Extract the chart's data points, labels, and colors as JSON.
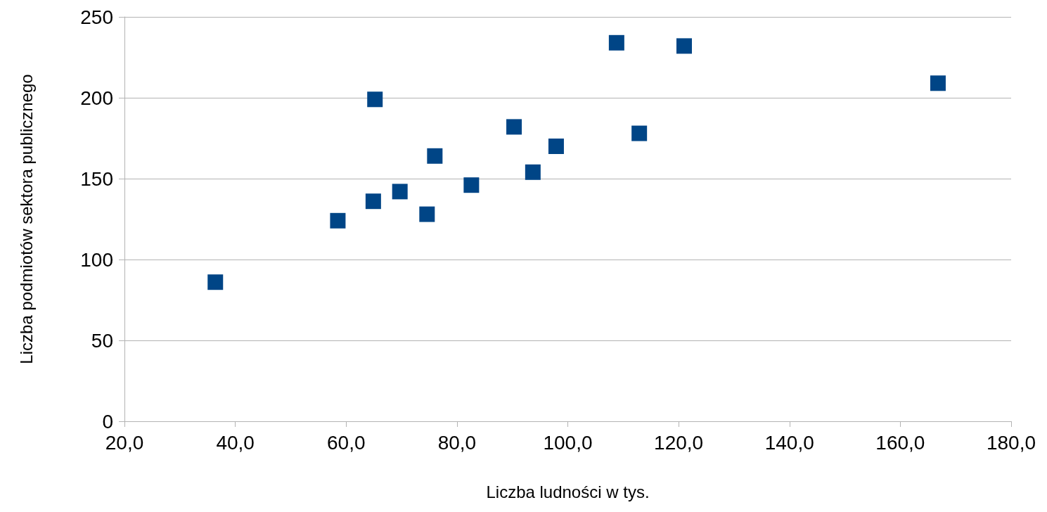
{
  "chart_data": {
    "type": "scatter",
    "xlabel": "Liczba ludności w tys.",
    "ylabel": "Liczba podmiotów sektora publicznego",
    "x": [
      36.4,
      58.5,
      64.9,
      65.2,
      69.7,
      74.6,
      76.0,
      82.6,
      90.3,
      93.7,
      97.9,
      108.8,
      112.9,
      121.0,
      166.8
    ],
    "series": [
      {
        "color": "#004586",
        "values": [
          86,
          124,
          136,
          199,
          142,
          128,
          164,
          146,
          182,
          154,
          170,
          234,
          178,
          232,
          209
        ]
      }
    ],
    "xlim": [
      20,
      180
    ],
    "xticks": [
      {
        "value": 20,
        "label": "20,0"
      },
      {
        "value": 40,
        "label": "40,0"
      },
      {
        "value": 60,
        "label": "60,0"
      },
      {
        "value": 80,
        "label": "80,0"
      },
      {
        "value": 100,
        "label": "100,0"
      },
      {
        "value": 120,
        "label": "120,0"
      },
      {
        "value": 140,
        "label": "140,0"
      },
      {
        "value": 160,
        "label": "160,0"
      },
      {
        "value": 180,
        "label": "180,0"
      }
    ],
    "ylim": [
      0,
      250
    ],
    "yticks": [
      0,
      50,
      100,
      150,
      200,
      250
    ],
    "grid": "y",
    "marker": "square"
  }
}
